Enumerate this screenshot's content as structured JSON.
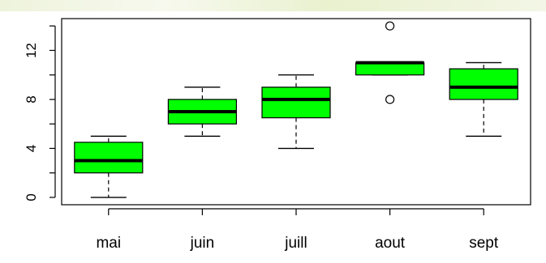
{
  "chart_data": {
    "type": "box",
    "title": "",
    "xlabel": "",
    "ylabel": "",
    "ylim": [
      -0.6,
      14.6
    ],
    "yticks": [
      0,
      4,
      8,
      12
    ],
    "y_minor_ticks": [
      2,
      6,
      10,
      14
    ],
    "categories": [
      "mai",
      "juin",
      "juill",
      "aout",
      "sept"
    ],
    "box_color": "#00ff00",
    "outline_color": "#000000",
    "boxes": [
      {
        "category": "mai",
        "whisker_low": 0,
        "q1": 2,
        "median": 3,
        "q3": 4.5,
        "whisker_high": 5,
        "outliers": []
      },
      {
        "category": "juin",
        "whisker_low": 5,
        "q1": 6,
        "median": 7,
        "q3": 8,
        "whisker_high": 9,
        "outliers": []
      },
      {
        "category": "juill",
        "whisker_low": 4,
        "q1": 6.5,
        "median": 8,
        "q3": 9,
        "whisker_high": 10,
        "outliers": []
      },
      {
        "category": "aout",
        "whisker_low": 10,
        "q1": 10,
        "median": 11,
        "q3": 11,
        "whisker_high": 11,
        "outliers": [
          8,
          14
        ]
      },
      {
        "category": "sept",
        "whisker_low": 5,
        "q1": 8,
        "median": 9,
        "q3": 10.5,
        "whisker_high": 11,
        "outliers": []
      }
    ]
  }
}
